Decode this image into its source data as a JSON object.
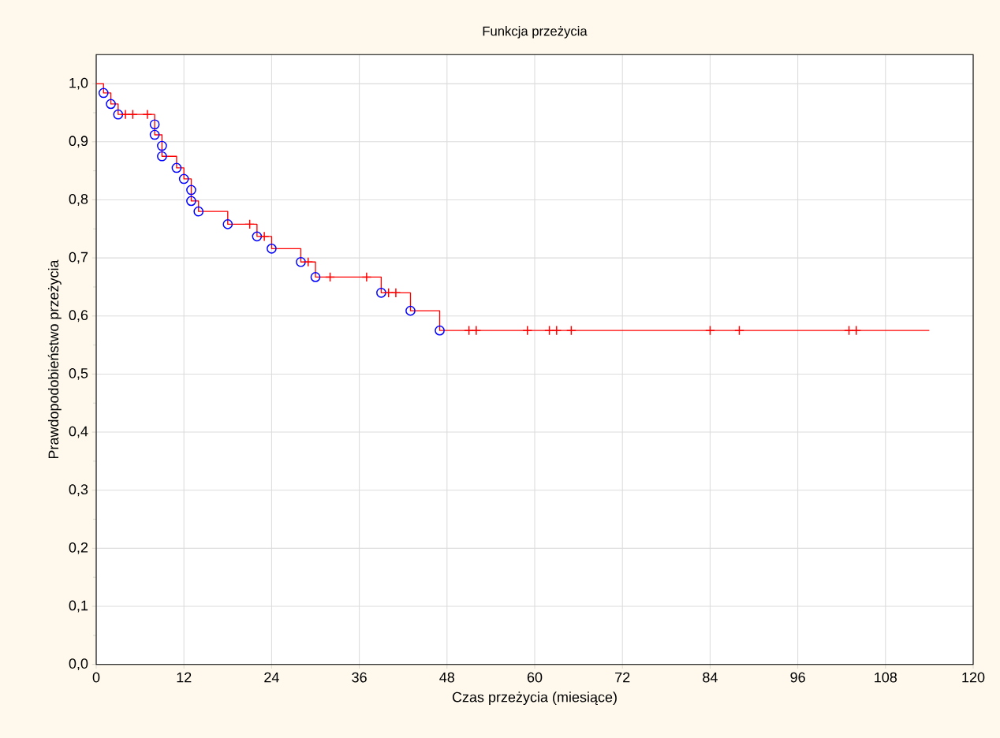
{
  "chart_data": {
    "type": "step",
    "title": "Funkcja przeżycia",
    "xlabel": "Czas przeżycia (miesiące)",
    "ylabel": "Prawdopodobieństwo przeżycia",
    "xlim": [
      0,
      120
    ],
    "xticks": [
      0,
      12,
      24,
      36,
      48,
      60,
      72,
      84,
      96,
      108,
      120
    ],
    "ylim": [
      0,
      1.05
    ],
    "yticks": [
      {
        "value": 0,
        "label": "0,0"
      },
      {
        "value": 0.1,
        "label": "0,1"
      },
      {
        "value": 0.2,
        "label": "0,2"
      },
      {
        "value": 0.3,
        "label": "0,3"
      },
      {
        "value": 0.4,
        "label": "0,4"
      },
      {
        "value": 0.5,
        "label": "0,5"
      },
      {
        "value": 0.6,
        "label": "0,6"
      },
      {
        "value": 0.7,
        "label": "0,7"
      },
      {
        "value": 0.8,
        "label": "0,8"
      },
      {
        "value": 0.9,
        "label": "0,9"
      },
      {
        "value": 1.0,
        "label": "1,0"
      }
    ],
    "grid": true,
    "series": [
      {
        "color": "#ff0000",
        "marker": "none",
        "x": [
          0,
          1,
          2,
          3,
          8,
          9,
          11,
          12,
          13,
          14,
          18,
          22,
          24,
          28,
          30,
          39,
          43,
          47,
          114
        ],
        "values": [
          1.0,
          0.984,
          0.965,
          0.947,
          0.912,
          0.875,
          0.855,
          0.836,
          0.798,
          0.78,
          0.758,
          0.737,
          0.716,
          0.693,
          0.667,
          0.64,
          0.609,
          0.575,
          0.575
        ]
      },
      {
        "type": "scatter",
        "color": "#0000ff",
        "marker": "circle",
        "x": [
          1,
          2,
          3,
          8,
          8,
          9,
          9,
          11,
          12,
          13,
          13,
          14,
          18,
          22,
          24,
          28,
          30,
          39,
          43,
          47
        ],
        "values": [
          0.984,
          0.965,
          0.947,
          0.93,
          0.912,
          0.893,
          0.875,
          0.855,
          0.836,
          0.817,
          0.798,
          0.78,
          0.758,
          0.737,
          0.716,
          0.693,
          0.667,
          0.64,
          0.609,
          0.575
        ]
      },
      {
        "type": "scatter",
        "color": "#ff0000",
        "marker": "cross",
        "x": [
          4,
          5,
          7,
          21,
          23,
          29,
          32,
          37,
          40,
          41,
          51,
          52,
          59,
          62,
          63,
          65,
          84,
          88,
          103,
          104
        ],
        "values": [
          0.947,
          0.947,
          0.947,
          0.758,
          0.737,
          0.693,
          0.667,
          0.667,
          0.64,
          0.64,
          0.575,
          0.575,
          0.575,
          0.575,
          0.575,
          0.575,
          0.575,
          0.575,
          0.575,
          0.575
        ]
      }
    ]
  }
}
